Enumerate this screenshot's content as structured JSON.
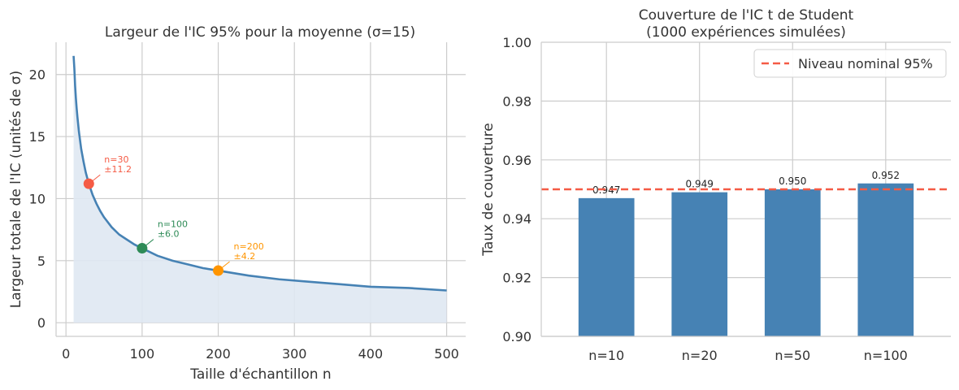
{
  "chart_data": [
    {
      "type": "line",
      "title": "Largeur de l'IC 95% pour la moyenne (σ=15)",
      "xlabel": "Taille d'échantillon n",
      "ylabel": "Largeur totale de l'IC (unités de σ)",
      "xlim": [
        -13,
        525
      ],
      "ylim": [
        -1.1,
        22.6
      ],
      "xticks": [
        0,
        100,
        200,
        300,
        400,
        500
      ],
      "yticks": [
        0,
        5,
        10,
        15,
        20
      ],
      "grid": true,
      "line_color": "#4682b4",
      "fill_color": "#dfe8f2",
      "curve": {
        "x": [
          10,
          11,
          12,
          13,
          14,
          15,
          17,
          20,
          23,
          26,
          30,
          35,
          40,
          45,
          50,
          60,
          70,
          80,
          90,
          100,
          120,
          140,
          160,
          180,
          200,
          240,
          280,
          320,
          360,
          400,
          450,
          500
        ],
        "y": [
          21.5,
          20.5,
          19.1,
          18.1,
          17.3,
          16.6,
          15.4,
          14.0,
          13.0,
          12.1,
          11.2,
          10.3,
          9.6,
          9.0,
          8.5,
          7.7,
          7.1,
          6.7,
          6.3,
          6.0,
          5.4,
          5.0,
          4.7,
          4.4,
          4.2,
          3.8,
          3.5,
          3.3,
          3.1,
          2.9,
          2.8,
          2.6
        ]
      },
      "highlights": [
        {
          "n": 30,
          "y": 11.2,
          "label_n": "n=30",
          "label_w": "±11.2",
          "color": "#f55b45"
        },
        {
          "n": 100,
          "y": 6.0,
          "label_n": "n=100",
          "label_w": "±6.0",
          "color": "#2e8b57"
        },
        {
          "n": 200,
          "y": 4.2,
          "label_n": "n=200",
          "label_w": "±4.2",
          "color": "#ff9500"
        }
      ]
    },
    {
      "type": "bar",
      "title_line1": "Couverture de l'IC t de Student",
      "title_line2": "(1000 expériences simulées)",
      "ylabel": "Taux de couverture",
      "categories": [
        "n=10",
        "n=20",
        "n=50",
        "n=100"
      ],
      "values": [
        0.947,
        0.949,
        0.95,
        0.952
      ],
      "value_labels": [
        "0.947",
        "0.949",
        "0.950",
        "0.952"
      ],
      "ylim": [
        0.9,
        1.0
      ],
      "yticks": [
        "0.90",
        "0.92",
        "0.94",
        "0.96",
        "0.98",
        "1.00"
      ],
      "reference_line": {
        "value": 0.95,
        "label": "Niveau nominal 95%",
        "color": "#f55b45"
      },
      "bar_color": "#4682b4",
      "legend_position": "top-right",
      "grid": true
    }
  ]
}
